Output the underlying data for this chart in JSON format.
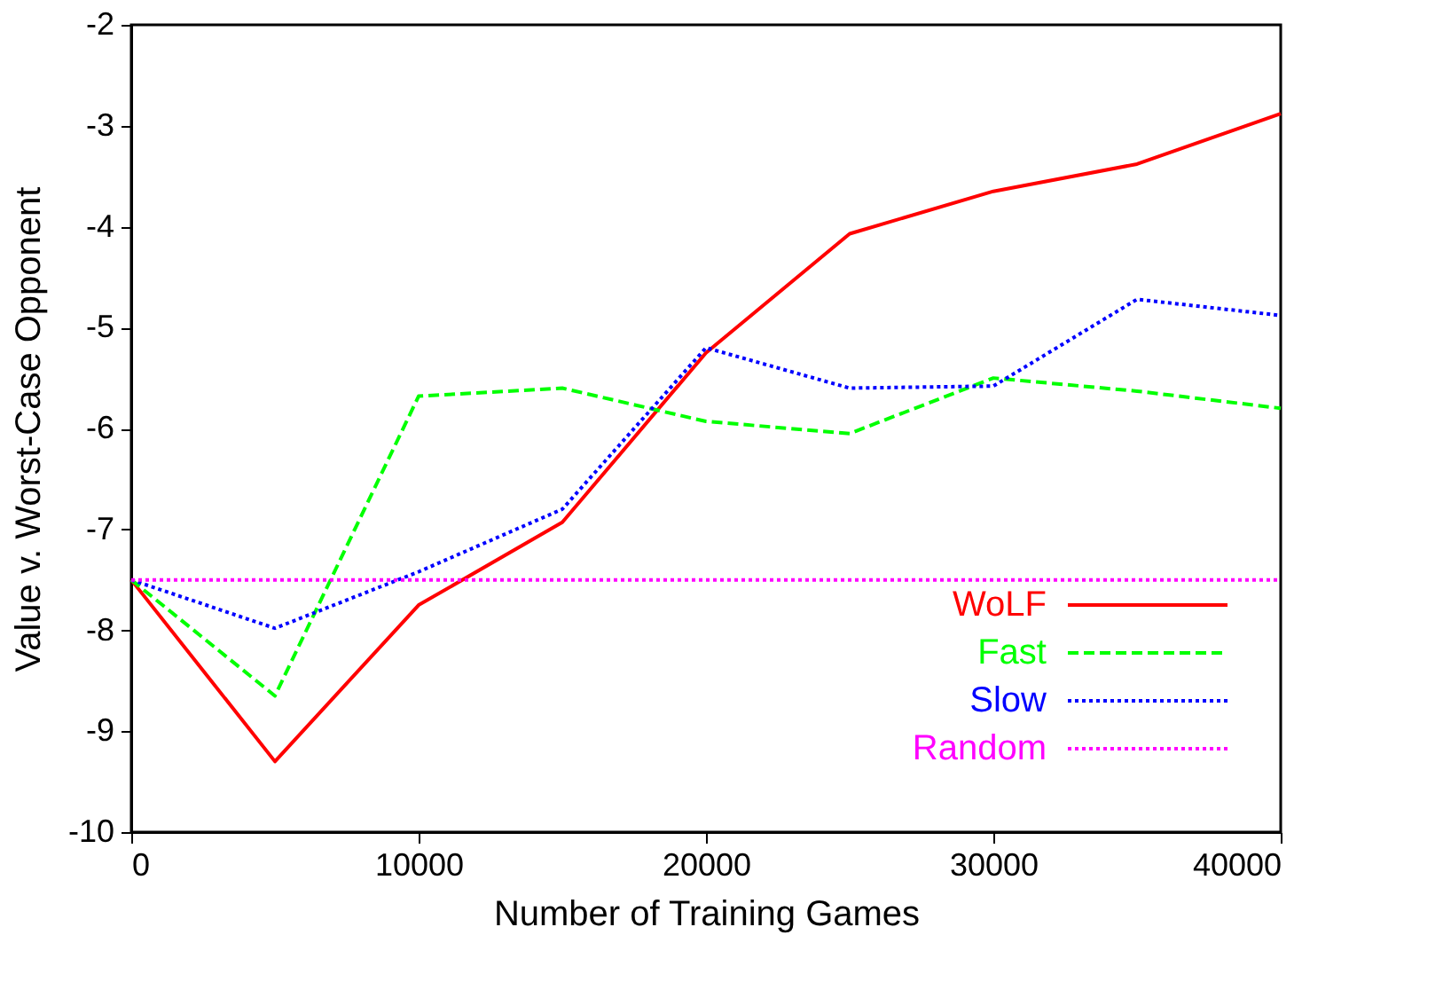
{
  "chart_data": {
    "type": "line",
    "xlabel": "Number of Training Games",
    "ylabel": "Value v. Worst-Case Opponent",
    "x": [
      0,
      5000,
      10000,
      15000,
      20000,
      25000,
      30000,
      35000,
      40000
    ],
    "series": [
      {
        "name": "WoLF",
        "color": "#ff0000",
        "line_style": "solid",
        "values": [
          -7.5,
          -9.3,
          -7.75,
          -6.93,
          -5.25,
          -4.07,
          -3.65,
          -3.38,
          -2.88
        ]
      },
      {
        "name": "Fast",
        "color": "#00ff00",
        "line_style": "dashed",
        "values": [
          -7.5,
          -8.65,
          -5.68,
          -5.6,
          -5.93,
          -6.05,
          -5.5,
          -5.63,
          -5.8
        ]
      },
      {
        "name": "Slow",
        "color": "#0000ff",
        "line_style": "dotted",
        "values": [
          -7.5,
          -7.98,
          -7.42,
          -6.8,
          -5.2,
          -5.6,
          -5.58,
          -4.72,
          -4.88
        ]
      },
      {
        "name": "Random",
        "color": "#ff00ff",
        "line_style": "dotted",
        "values": [
          -7.5,
          -7.5,
          -7.5,
          -7.5,
          -7.5,
          -7.5,
          -7.5,
          -7.5,
          -7.5
        ]
      }
    ],
    "xlim": [
      0,
      40000
    ],
    "xticks": [
      0,
      10000,
      20000,
      30000,
      40000
    ],
    "ylim": [
      -10,
      -2
    ],
    "yticks": [
      -10,
      -9,
      -8,
      -7,
      -6,
      -5,
      -4,
      -3,
      -2
    ],
    "grid": false,
    "legend": "bottom right",
    "marker": "none"
  }
}
